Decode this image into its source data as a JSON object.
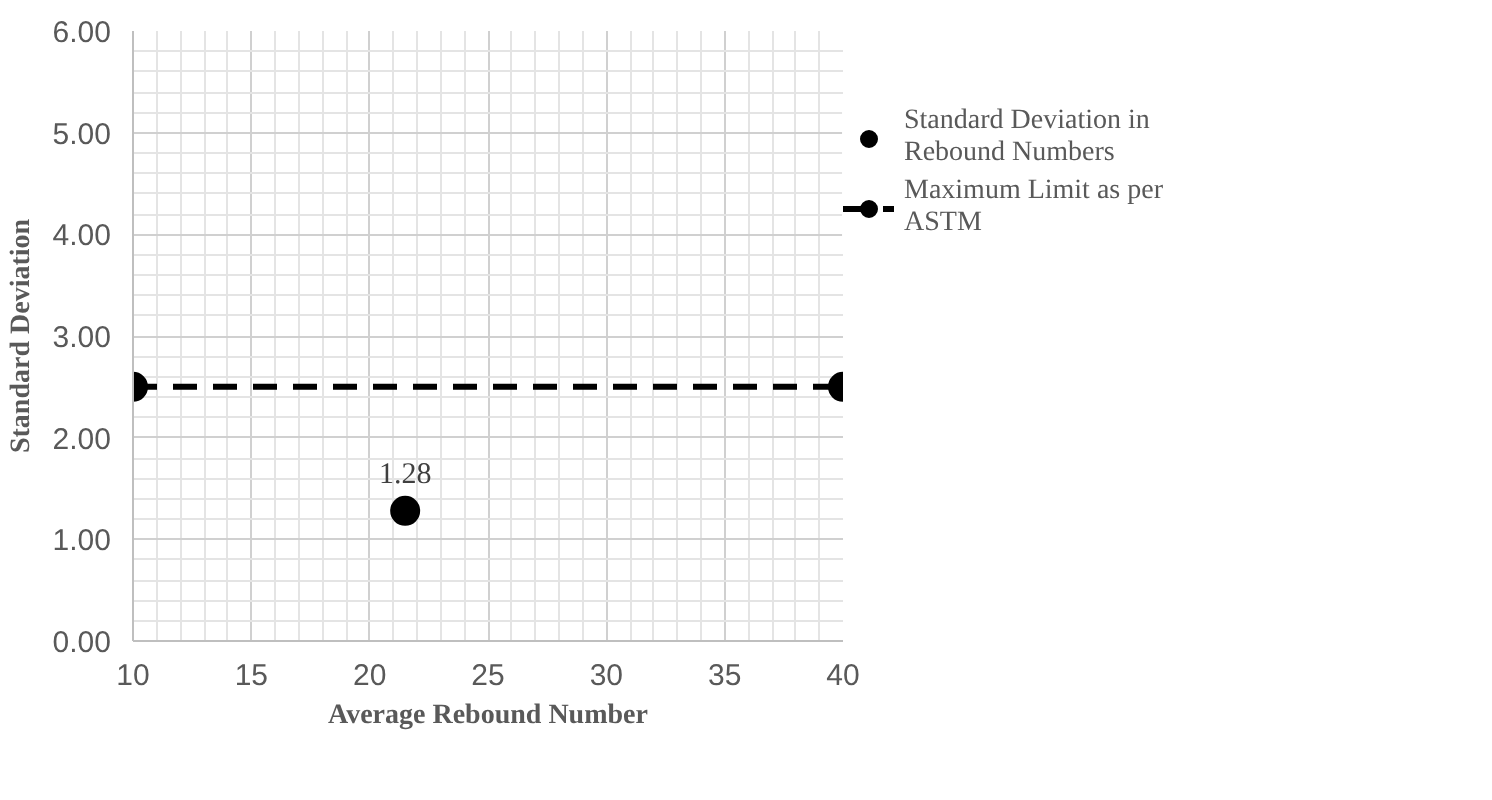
{
  "chart_data": {
    "type": "scatter",
    "xlabel": "Average Rebound Number",
    "ylabel": "Standard Deviation",
    "xlim": [
      10,
      40
    ],
    "xticks": [
      10,
      15,
      20,
      25,
      30,
      35,
      40
    ],
    "ylim": [
      0,
      6
    ],
    "yticks": [
      {
        "value": 0,
        "label": "0.00"
      },
      {
        "value": 1,
        "label": "1.00"
      },
      {
        "value": 2,
        "label": "2.00"
      },
      {
        "value": 3,
        "label": "3.00"
      },
      {
        "value": 4,
        "label": "4.00"
      },
      {
        "value": 5,
        "label": "5.00"
      },
      {
        "value": 6,
        "label": "6.00"
      }
    ],
    "grid": true,
    "legend": "top right",
    "marker": "circle",
    "series": [
      {
        "name": "Standard Deviation in Rebound Numbers",
        "color": "#000000",
        "x": [
          21.5
        ],
        "values": [
          1.28
        ],
        "value_labels": [
          "1.28"
        ]
      },
      {
        "name": "Maximum Limit as per ASTM",
        "type": "line",
        "line_style": "dashed",
        "color": "#000000",
        "x": [
          10,
          40
        ],
        "values": [
          2.5,
          2.5
        ]
      }
    ]
  }
}
